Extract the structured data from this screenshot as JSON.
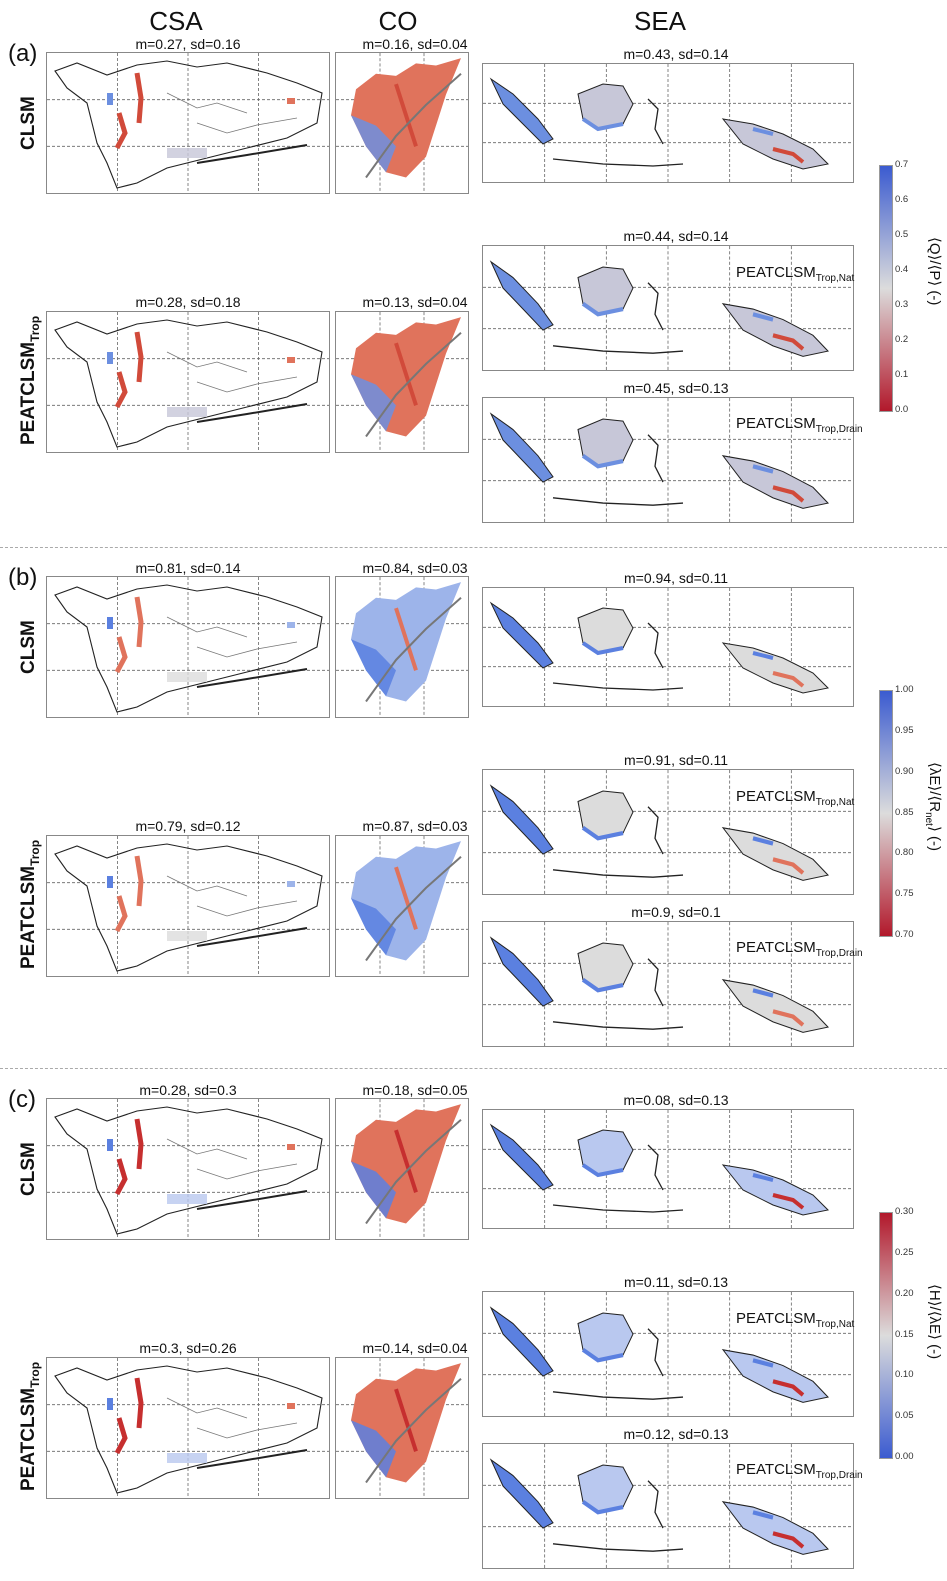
{
  "columns": {
    "csa": "CSA",
    "co": "CO",
    "sea": "SEA"
  },
  "rows": {
    "clsm": "CLSM",
    "peat_base": "PEATCLSM",
    "peat_sub": "Trop"
  },
  "sea_labels": {
    "nat_base": "PEATCLSM",
    "nat_sub": "Trop,Nat",
    "drain_base": "PEATCLSM",
    "drain_sub": "Trop,Drain"
  },
  "panels": [
    {
      "letter": "(a)",
      "csa_clsm": "m=0.27, sd=0.16",
      "co_clsm": "m=0.16, sd=0.04",
      "csa_peat": "m=0.28, sd=0.18",
      "co_peat": "m=0.13, sd=0.04",
      "sea_clsm": "m=0.43, sd=0.14",
      "sea_nat": "m=0.44, sd=0.14",
      "sea_drain": "m=0.45, sd=0.13",
      "colorbar": {
        "title_pre": "⟨Q⟩/⟨P⟩ (-)",
        "title_sub": "",
        "ticks": [
          "0.7",
          "0.6",
          "0.5",
          "0.4",
          "0.3",
          "0.2",
          "0.1",
          "0.0"
        ],
        "top_color": "#3b5bd0",
        "mid_color": "#dcdcdc",
        "bottom_color": "#b2182b"
      }
    },
    {
      "letter": "(b)",
      "csa_clsm": "m=0.81, sd=0.14",
      "co_clsm": "m=0.84, sd=0.03",
      "csa_peat": "m=0.79, sd=0.12",
      "co_peat": "m=0.87, sd=0.03",
      "sea_clsm": "m=0.94, sd=0.11",
      "sea_nat": "m=0.91, sd=0.11",
      "sea_drain": "m=0.9, sd=0.1",
      "colorbar": {
        "title_pre": "⟨λE⟩/⟨R",
        "title_sub": "net",
        "title_post": "⟩ (-)",
        "ticks": [
          "1.00",
          "0.95",
          "0.90",
          "0.85",
          "0.80",
          "0.75",
          "0.70"
        ],
        "top_color": "#3b5bd0",
        "mid_color": "#dcdcdc",
        "bottom_color": "#b2182b"
      }
    },
    {
      "letter": "(c)",
      "csa_clsm": "m=0.28, sd=0.3",
      "co_clsm": "m=0.18, sd=0.05",
      "csa_peat": "m=0.3, sd=0.26",
      "co_peat": "m=0.14, sd=0.04",
      "sea_clsm": "m=0.08, sd=0.13",
      "sea_nat": "m=0.11, sd=0.13",
      "sea_drain": "m=0.12, sd=0.13",
      "colorbar": {
        "title_pre": "⟨H⟩/⟨λE⟩ (-)",
        "title_sub": "",
        "ticks": [
          "0.30",
          "0.25",
          "0.20",
          "0.15",
          "0.10",
          "0.05",
          "0.00"
        ],
        "top_color": "#b2182b",
        "mid_color": "#dcdcdc",
        "bottom_color": "#3b5bd0"
      }
    }
  ]
}
